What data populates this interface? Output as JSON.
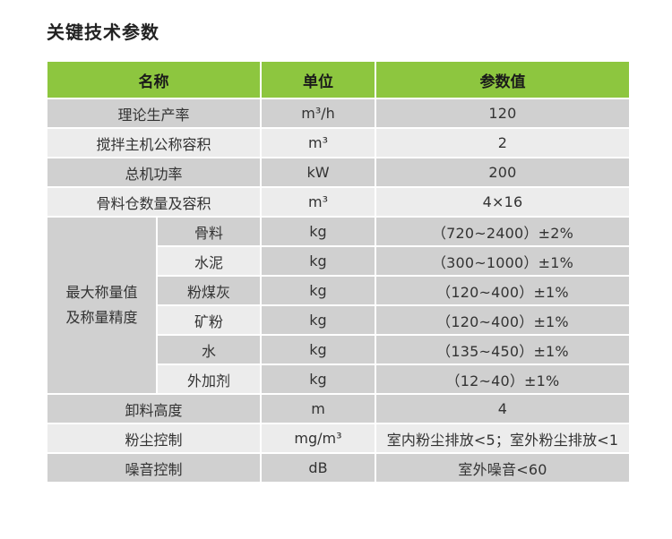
{
  "title": "关键技术参数",
  "header": {
    "name": "名称",
    "unit": "单位",
    "value": "参数值"
  },
  "rows": [
    {
      "name": "理论生产率",
      "unit": "m³/h",
      "value": "120"
    },
    {
      "name": "搅拌主机公称容积",
      "unit": "m³",
      "value": "2"
    },
    {
      "name": "总机功率",
      "unit": "kW",
      "value": "200"
    },
    {
      "name": "骨料仓数量及容积",
      "unit": "m³",
      "value": "4×16"
    }
  ],
  "group": {
    "label_line1": "最大称量值",
    "label_line2": "及称量精度",
    "items": [
      {
        "name": "骨料",
        "unit": "kg",
        "value": "（720~2400）±2%"
      },
      {
        "name": "水泥",
        "unit": "kg",
        "value": "（300~1000）±1%"
      },
      {
        "name": "粉煤灰",
        "unit": "kg",
        "value": "（120~400）±1%"
      },
      {
        "name": "矿粉",
        "unit": "kg",
        "value": "（120~400）±1%"
      },
      {
        "name": "水",
        "unit": "kg",
        "value": "（135~450）±1%"
      },
      {
        "name": "外加剂",
        "unit": "kg",
        "value": "（12~40）±1%"
      }
    ]
  },
  "rows_after": [
    {
      "name": "卸料高度",
      "unit": "m",
      "value": "4"
    },
    {
      "name": "粉尘控制",
      "unit": "mg/m³",
      "value": "室内粉尘排放<5；室外粉尘排放<1"
    },
    {
      "name": "噪音控制",
      "unit": "dB",
      "value": "室外噪音<60"
    }
  ]
}
